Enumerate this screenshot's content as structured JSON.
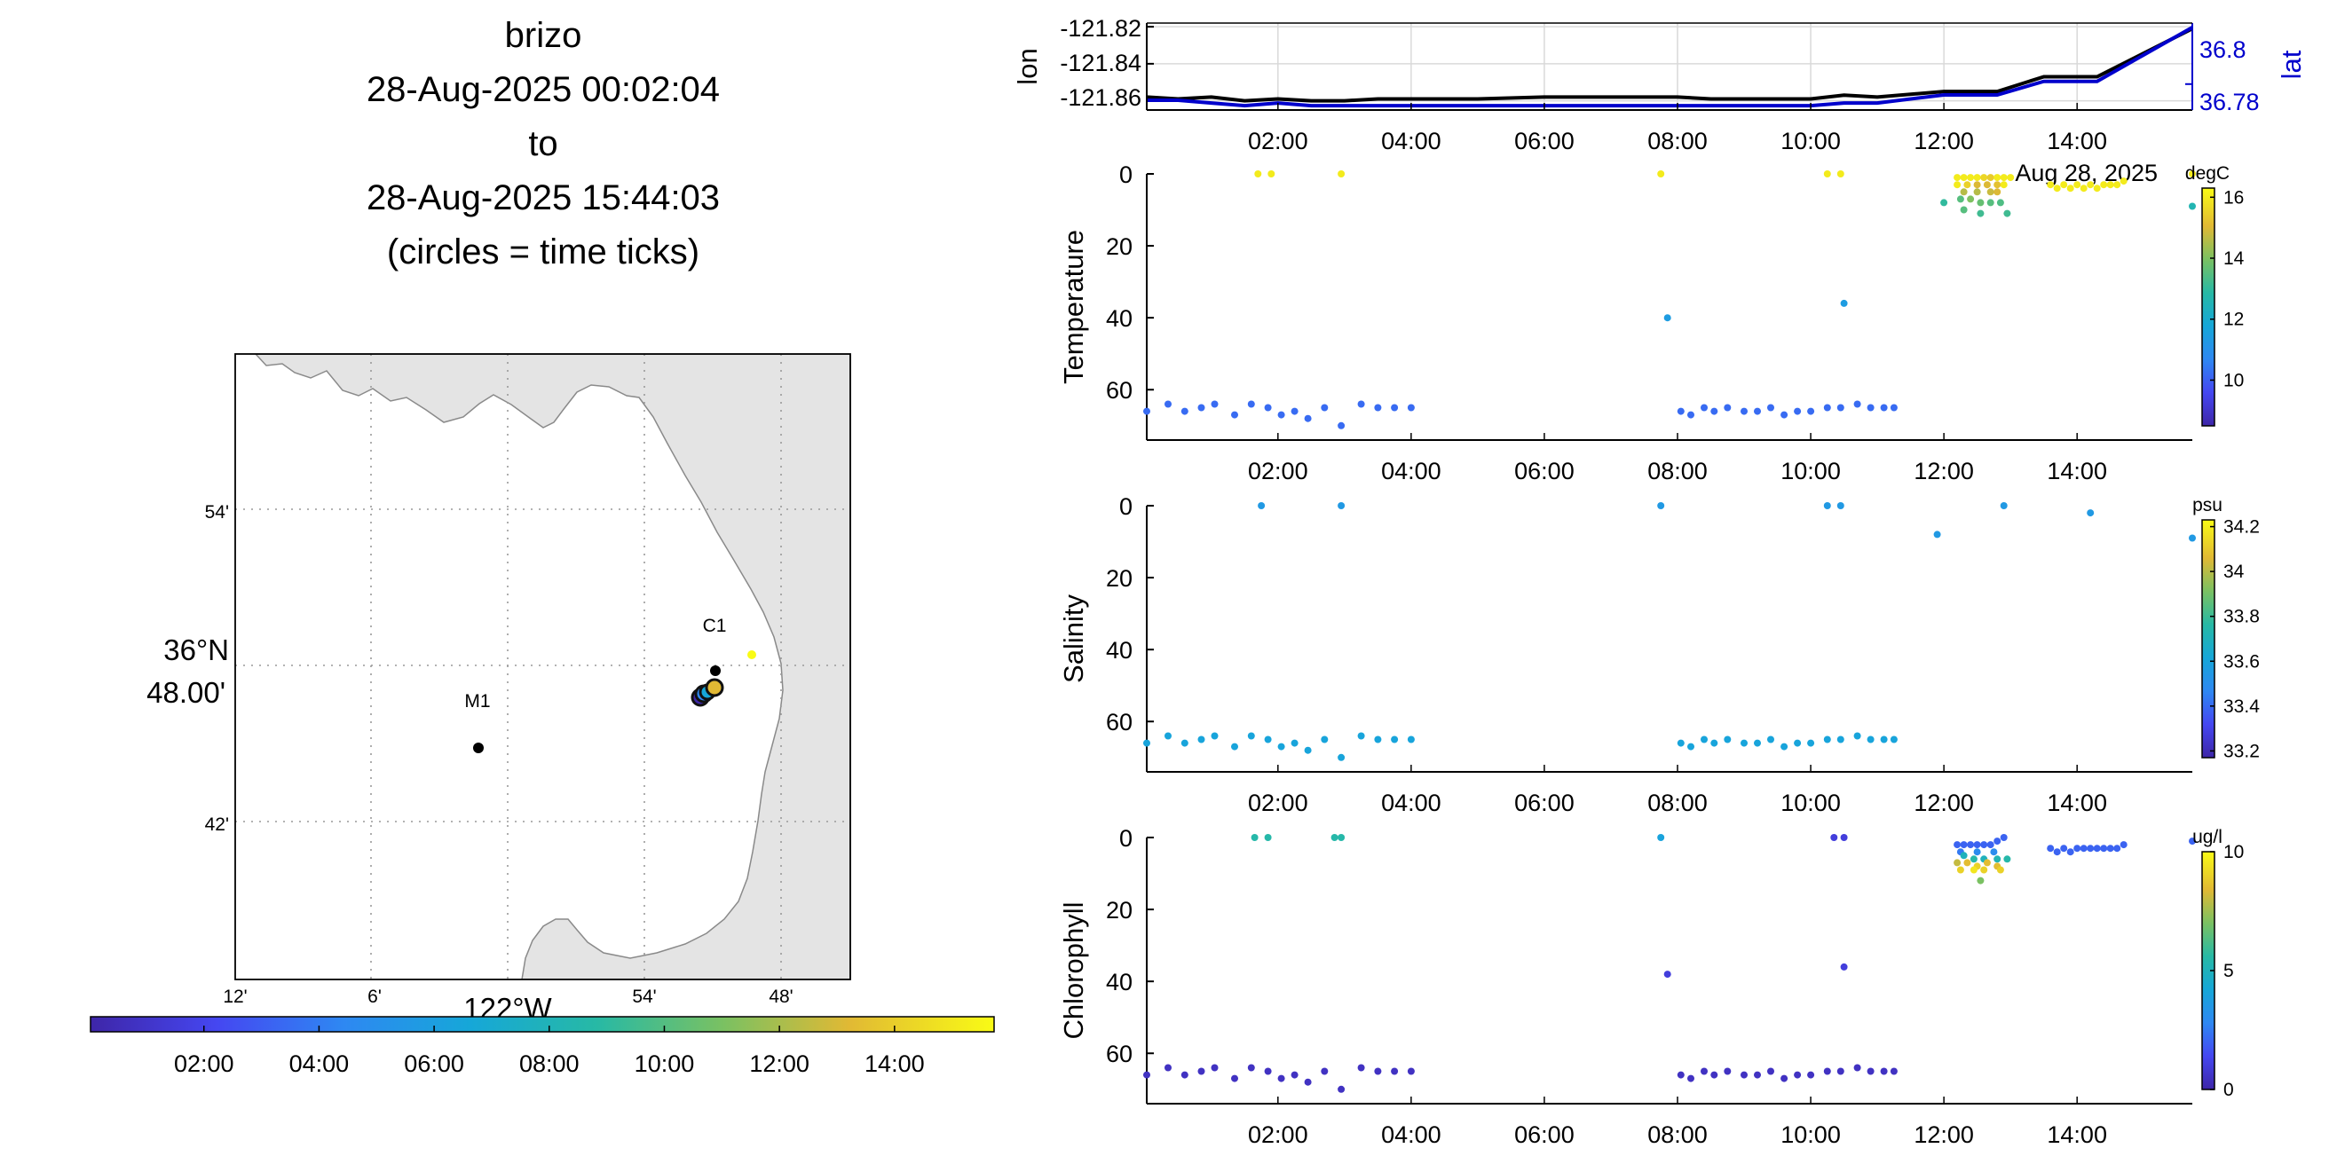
{
  "title": {
    "platform": "brizo",
    "start": "28-Aug-2025 00:02:04",
    "to": "to",
    "end": "28-Aug-2025 15:44:03",
    "note": "(circles = time ticks)"
  },
  "map": {
    "lat_ticks": [
      "54'",
      "42'"
    ],
    "lat_center_line1": "36°N",
    "lat_center_line2": "48.00'",
    "lon_ticks": [
      "12'",
      "6'",
      "54'",
      "48'"
    ],
    "lon_center": "122°W",
    "station_labels": [
      "M1",
      "C1"
    ],
    "land_color": "#e4e4e4",
    "track_colorbar_ticks": [
      "02:00",
      "04:00",
      "06:00",
      "08:00",
      "10:00",
      "12:00",
      "14:00"
    ]
  },
  "position_panel": {
    "ylabel_left": "lon",
    "ylabel_right": "lat",
    "left_ticks": [
      "-121.82",
      "-121.84",
      "-121.86"
    ],
    "right_ticks": [
      "36.8",
      "36.78"
    ],
    "date_label": "Aug 28, 2025",
    "lat_color": "#0000cc",
    "lon_color": "#000000"
  },
  "time_ticks": [
    "02:00",
    "04:00",
    "06:00",
    "08:00",
    "10:00",
    "12:00",
    "14:00"
  ],
  "chart_data": [
    {
      "type": "line",
      "name": "position",
      "x_units": "hours since 00:00 on 28-Aug-2025",
      "x": [
        0.03,
        0.5,
        1.0,
        1.5,
        2.0,
        2.5,
        3.0,
        3.5,
        4.0,
        5.0,
        6.0,
        7.0,
        8.0,
        8.5,
        9.0,
        9.5,
        10.0,
        10.5,
        11.0,
        12.0,
        12.8,
        13.5,
        14.3,
        15.73
      ],
      "series": [
        {
          "name": "lon",
          "values": [
            -121.858,
            -121.859,
            -121.858,
            -121.86,
            -121.859,
            -121.86,
            -121.86,
            -121.859,
            -121.859,
            -121.859,
            -121.858,
            -121.858,
            -121.858,
            -121.859,
            -121.859,
            -121.859,
            -121.859,
            -121.857,
            -121.858,
            -121.855,
            -121.855,
            -121.847,
            -121.847,
            -121.821
          ]
        },
        {
          "name": "lat",
          "values": [
            36.774,
            36.774,
            36.773,
            36.772,
            36.773,
            36.772,
            36.772,
            36.772,
            36.772,
            36.772,
            36.772,
            36.772,
            36.772,
            36.772,
            36.772,
            36.772,
            36.772,
            36.773,
            36.773,
            36.776,
            36.776,
            36.781,
            36.781,
            36.801
          ]
        }
      ],
      "ylim_left": [
        -121.865,
        -121.818
      ],
      "ylim_right": [
        36.7704,
        36.8026
      ],
      "grid": true
    },
    {
      "type": "scatter",
      "name": "temperature",
      "ylabel": "Temperature",
      "colorbar_label": "degC",
      "colorbar_ticks": [
        "16",
        "14",
        "12",
        "10"
      ],
      "clim": [
        8.5,
        16.3
      ],
      "ylim": [
        74,
        0
      ],
      "points": [
        [
          0.03,
          66,
          10.2
        ],
        [
          0.35,
          64,
          10.2
        ],
        [
          0.6,
          66,
          10.2
        ],
        [
          0.85,
          65,
          10.2
        ],
        [
          1.05,
          64,
          10.2
        ],
        [
          1.35,
          67,
          10.2
        ],
        [
          1.6,
          64,
          10.2
        ],
        [
          1.85,
          65,
          10.2
        ],
        [
          2.05,
          67,
          10.2
        ],
        [
          1.7,
          0,
          16
        ],
        [
          1.9,
          0,
          16
        ],
        [
          2.95,
          0,
          16
        ],
        [
          2.25,
          66,
          10.2
        ],
        [
          2.45,
          68,
          10.2
        ],
        [
          2.7,
          65,
          10.2
        ],
        [
          2.95,
          70,
          10.2
        ],
        [
          3.25,
          64,
          10.2
        ],
        [
          3.5,
          65,
          10.2
        ],
        [
          3.75,
          65,
          10.2
        ],
        [
          4.0,
          65,
          10.2
        ],
        [
          7.75,
          0,
          16
        ],
        [
          7.85,
          40,
          11.4
        ],
        [
          8.05,
          66,
          10.2
        ],
        [
          8.2,
          67,
          10.2
        ],
        [
          8.4,
          65,
          10.2
        ],
        [
          8.55,
          66,
          10.2
        ],
        [
          8.75,
          65,
          10.2
        ],
        [
          9.0,
          66,
          10.2
        ],
        [
          9.2,
          66,
          10.2
        ],
        [
          9.4,
          65,
          10.2
        ],
        [
          9.6,
          67,
          10.2
        ],
        [
          9.8,
          66,
          10.2
        ],
        [
          10.0,
          66,
          10.2
        ],
        [
          10.25,
          65,
          10.2
        ],
        [
          10.45,
          65,
          10.2
        ],
        [
          10.25,
          0,
          16
        ],
        [
          10.45,
          0,
          16
        ],
        [
          10.5,
          36,
          11.4
        ],
        [
          10.7,
          64,
          10.2
        ],
        [
          10.9,
          65,
          10.2
        ],
        [
          11.1,
          65,
          10.2
        ],
        [
          11.25,
          65,
          10.2
        ],
        [
          12.0,
          8,
          13
        ],
        [
          12.2,
          1,
          16
        ],
        [
          12.3,
          1,
          16
        ],
        [
          12.4,
          1,
          16
        ],
        [
          12.5,
          1,
          16
        ],
        [
          12.6,
          1,
          15.6
        ],
        [
          12.7,
          1,
          15.4
        ],
        [
          12.8,
          1,
          16
        ],
        [
          12.9,
          1,
          16
        ],
        [
          13.0,
          1,
          16
        ],
        [
          12.2,
          3,
          16
        ],
        [
          12.35,
          3,
          15.5
        ],
        [
          12.5,
          3,
          15
        ],
        [
          12.65,
          3,
          15
        ],
        [
          12.8,
          3,
          15.2
        ],
        [
          12.9,
          3,
          16
        ],
        [
          12.3,
          5,
          14.6
        ],
        [
          12.5,
          5,
          14.6
        ],
        [
          12.7,
          5,
          14.8
        ],
        [
          12.8,
          5,
          15
        ],
        [
          12.25,
          7,
          13.5
        ],
        [
          12.4,
          7,
          14
        ],
        [
          12.55,
          8,
          13.7
        ],
        [
          12.7,
          8,
          13.5
        ],
        [
          12.85,
          8,
          13.4
        ],
        [
          12.3,
          10,
          13.5
        ],
        [
          12.55,
          11,
          13.2
        ],
        [
          12.95,
          11,
          13.2
        ],
        [
          13.6,
          3,
          16
        ],
        [
          13.7,
          4,
          16
        ],
        [
          13.8,
          3,
          16
        ],
        [
          13.9,
          4,
          16
        ],
        [
          14.0,
          3,
          16
        ],
        [
          14.1,
          4,
          16
        ],
        [
          14.2,
          3,
          16
        ],
        [
          14.3,
          4,
          16
        ],
        [
          14.4,
          3,
          16
        ],
        [
          14.5,
          3,
          16
        ],
        [
          14.6,
          3,
          16
        ],
        [
          14.7,
          2,
          16
        ],
        [
          15.73,
          0,
          16
        ],
        [
          15.73,
          9,
          12.6
        ]
      ]
    },
    {
      "type": "scatter",
      "name": "salinity",
      "ylabel": "Salinity",
      "colorbar_label": "psu",
      "colorbar_ticks": [
        "34.2",
        "34",
        "33.8",
        "33.6",
        "33.4",
        "33.2"
      ],
      "clim": [
        33.17,
        34.23
      ],
      "ylim": [
        74,
        0
      ],
      "points": [
        [
          0.03,
          66,
          33.6
        ],
        [
          0.35,
          64,
          33.6
        ],
        [
          0.6,
          66,
          33.6
        ],
        [
          0.85,
          65,
          33.6
        ],
        [
          1.05,
          64,
          33.6
        ],
        [
          1.35,
          67,
          33.6
        ],
        [
          1.6,
          64,
          33.6
        ],
        [
          1.85,
          65,
          33.6
        ],
        [
          2.05,
          67,
          33.6
        ],
        [
          1.75,
          0,
          33.55
        ],
        [
          2.95,
          0,
          33.55
        ],
        [
          2.25,
          66,
          33.6
        ],
        [
          2.45,
          68,
          33.6
        ],
        [
          2.7,
          65,
          33.6
        ],
        [
          2.95,
          70,
          33.6
        ],
        [
          3.25,
          64,
          33.6
        ],
        [
          3.5,
          65,
          33.6
        ],
        [
          3.75,
          65,
          33.6
        ],
        [
          4.0,
          65,
          33.6
        ],
        [
          7.75,
          0,
          33.55
        ],
        [
          8.05,
          66,
          33.6
        ],
        [
          8.2,
          67,
          33.6
        ],
        [
          8.4,
          65,
          33.6
        ],
        [
          8.55,
          66,
          33.6
        ],
        [
          8.75,
          65,
          33.6
        ],
        [
          9.0,
          66,
          33.6
        ],
        [
          9.2,
          66,
          33.6
        ],
        [
          9.4,
          65,
          33.6
        ],
        [
          9.6,
          67,
          33.6
        ],
        [
          9.8,
          66,
          33.6
        ],
        [
          10.0,
          66,
          33.6
        ],
        [
          10.25,
          65,
          33.6
        ],
        [
          10.45,
          65,
          33.6
        ],
        [
          10.25,
          0,
          33.55
        ],
        [
          10.45,
          0,
          33.55
        ],
        [
          10.7,
          64,
          33.6
        ],
        [
          10.9,
          65,
          33.6
        ],
        [
          11.1,
          65,
          33.6
        ],
        [
          11.25,
          65,
          33.6
        ],
        [
          11.9,
          8,
          33.55
        ],
        [
          12.9,
          0,
          33.55
        ],
        [
          14.2,
          2,
          33.55
        ],
        [
          15.73,
          9,
          33.55
        ]
      ]
    },
    {
      "type": "scatter",
      "name": "chlorophyll",
      "ylabel": "Chlorophyll",
      "colorbar_label": "ug/l",
      "colorbar_ticks": [
        "10",
        "5",
        "0"
      ],
      "clim": [
        0,
        10
      ],
      "ylim": [
        74,
        0
      ],
      "points": [
        [
          0.03,
          66,
          0.5
        ],
        [
          0.35,
          64,
          0.5
        ],
        [
          0.6,
          66,
          0.5
        ],
        [
          0.85,
          65,
          0.5
        ],
        [
          1.05,
          64,
          0.5
        ],
        [
          1.35,
          67,
          0.5
        ],
        [
          1.6,
          64,
          0.5
        ],
        [
          1.85,
          65,
          0.5
        ],
        [
          2.05,
          67,
          0.5
        ],
        [
          1.65,
          0,
          5.5
        ],
        [
          1.85,
          0,
          5.5
        ],
        [
          2.85,
          0,
          5.5
        ],
        [
          2.95,
          0,
          5.5
        ],
        [
          2.25,
          66,
          0.5
        ],
        [
          2.45,
          68,
          0.5
        ],
        [
          2.7,
          65,
          0.5
        ],
        [
          2.95,
          70,
          0.5
        ],
        [
          3.25,
          64,
          0.5
        ],
        [
          3.5,
          65,
          0.5
        ],
        [
          3.75,
          65,
          0.5
        ],
        [
          4.0,
          65,
          0.5
        ],
        [
          7.75,
          0,
          4
        ],
        [
          7.85,
          38,
          1
        ],
        [
          8.05,
          66,
          0.5
        ],
        [
          8.2,
          67,
          0.5
        ],
        [
          8.4,
          65,
          0.5
        ],
        [
          8.55,
          66,
          0.5
        ],
        [
          8.75,
          65,
          0.5
        ],
        [
          9.0,
          66,
          0.5
        ],
        [
          9.2,
          66,
          0.5
        ],
        [
          9.4,
          65,
          0.5
        ],
        [
          9.6,
          67,
          0.5
        ],
        [
          9.8,
          66,
          0.5
        ],
        [
          10.0,
          66,
          0.5
        ],
        [
          10.25,
          65,
          0.5
        ],
        [
          10.45,
          65,
          0.5
        ],
        [
          10.35,
          0,
          1
        ],
        [
          10.5,
          0,
          1
        ],
        [
          10.5,
          36,
          1
        ],
        [
          10.7,
          64,
          0.5
        ],
        [
          10.9,
          65,
          0.5
        ],
        [
          11.1,
          65,
          0.5
        ],
        [
          11.25,
          65,
          0.5
        ],
        [
          12.2,
          2,
          2
        ],
        [
          12.3,
          2,
          2
        ],
        [
          12.4,
          2,
          2
        ],
        [
          12.5,
          2,
          2
        ],
        [
          12.6,
          2,
          2
        ],
        [
          12.7,
          2,
          2
        ],
        [
          12.8,
          1,
          2
        ],
        [
          12.9,
          0,
          2
        ],
        [
          12.25,
          4,
          2.5
        ],
        [
          12.5,
          4,
          3
        ],
        [
          12.75,
          4,
          3
        ],
        [
          12.3,
          5,
          5
        ],
        [
          12.45,
          6,
          5.5
        ],
        [
          12.6,
          6,
          5
        ],
        [
          12.8,
          6,
          5.2
        ],
        [
          12.95,
          6,
          5.5
        ],
        [
          12.2,
          7,
          8
        ],
        [
          12.35,
          7,
          8.5
        ],
        [
          12.5,
          8,
          9
        ],
        [
          12.65,
          7,
          8.5
        ],
        [
          12.8,
          8,
          8.5
        ],
        [
          12.25,
          9,
          9
        ],
        [
          12.45,
          9,
          9.5
        ],
        [
          12.6,
          9,
          9
        ],
        [
          12.85,
          9,
          9
        ],
        [
          12.55,
          12,
          7
        ],
        [
          13.6,
          3,
          2
        ],
        [
          13.7,
          4,
          2
        ],
        [
          13.8,
          3,
          2
        ],
        [
          13.9,
          4,
          2
        ],
        [
          14.0,
          3,
          2
        ],
        [
          14.1,
          3,
          2
        ],
        [
          14.2,
          3,
          2
        ],
        [
          14.3,
          3,
          2
        ],
        [
          14.4,
          3,
          2
        ],
        [
          14.5,
          3,
          2
        ],
        [
          14.6,
          3,
          2
        ],
        [
          14.7,
          2,
          2
        ],
        [
          15.73,
          1,
          2
        ]
      ]
    }
  ]
}
